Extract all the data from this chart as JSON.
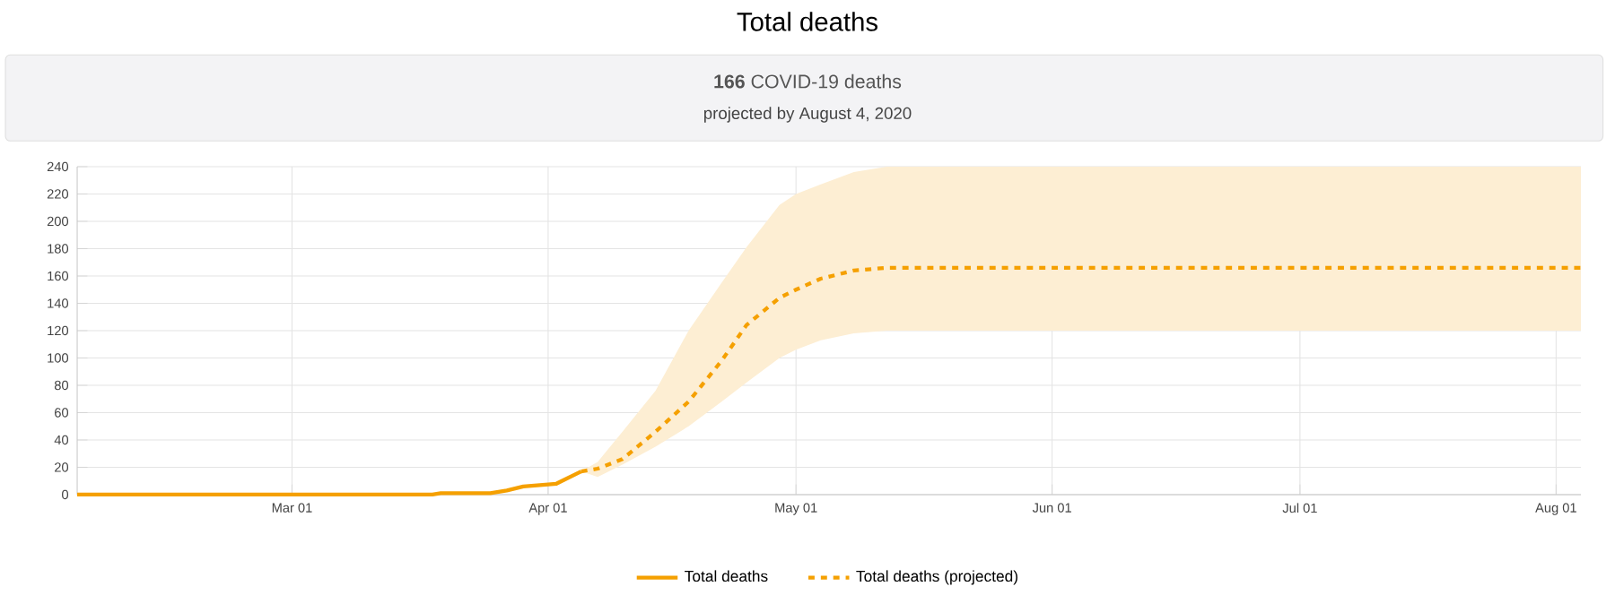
{
  "chart_data": {
    "type": "line",
    "title": "Total deaths",
    "subtitle": "**166** COVID-19 deaths",
    "annotations": [
      "projected by August 4, 2020"
    ],
    "xlim": [
      "2020-02-04",
      "2020-08-04"
    ],
    "xticks": [
      {
        "value": "2020-03-01",
        "label": "Mar 01"
      },
      {
        "value": "2020-04-01",
        "label": "Apr 01"
      },
      {
        "value": "2020-05-01",
        "label": "May 01"
      },
      {
        "value": "2020-06-01",
        "label": "Jun 01"
      },
      {
        "value": "2020-07-01",
        "label": "Jul 01"
      },
      {
        "value": "2020-08-01",
        "label": "Aug 01"
      }
    ],
    "ylim": [
      0,
      240
    ],
    "yticks": [
      0,
      20,
      40,
      60,
      80,
      100,
      120,
      140,
      160,
      180,
      200,
      220,
      240
    ],
    "grid": true,
    "legend": "bottom",
    "series": [
      {
        "name": "Total deaths",
        "color": "#f5a000",
        "line_style": "solid",
        "x": [
          "2020-02-04",
          "2020-03-18",
          "2020-03-19",
          "2020-03-25",
          "2020-03-27",
          "2020-03-29",
          "2020-04-02",
          "2020-04-05"
        ],
        "values": [
          0,
          0,
          1,
          1,
          3,
          6,
          8,
          17
        ]
      },
      {
        "name": "Total deaths (projected)",
        "color": "#f5a000",
        "line_style": "dashed",
        "x": [
          "2020-04-05",
          "2020-04-07",
          "2020-04-10",
          "2020-04-14",
          "2020-04-18",
          "2020-04-22",
          "2020-04-25",
          "2020-04-29",
          "2020-05-01",
          "2020-05-04",
          "2020-05-08",
          "2020-05-12",
          "2020-08-04"
        ],
        "values": [
          17,
          19,
          26,
          46,
          68,
          98,
          124,
          144,
          150,
          158,
          164,
          166,
          166
        ],
        "lower": [
          17,
          13,
          22,
          35,
          50,
          68,
          82,
          100,
          106,
          113,
          118,
          120,
          120
        ],
        "upper": [
          17,
          24,
          46,
          76,
          120,
          155,
          181,
          212,
          220,
          227,
          236,
          240,
          240
        ]
      }
    ]
  }
}
